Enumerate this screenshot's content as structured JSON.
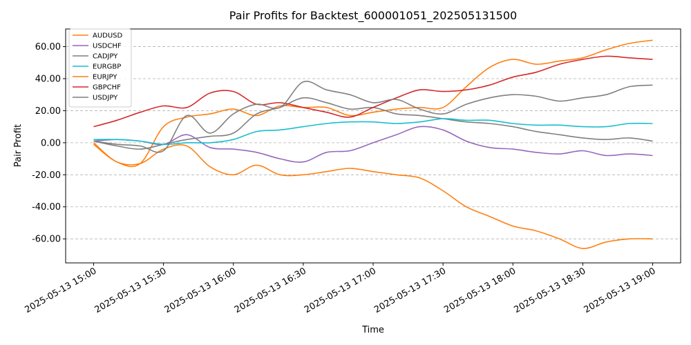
{
  "chart_data": {
    "type": "line",
    "title": "Pair Profits for Backtest_600001051_202505131500",
    "xlabel": "Time",
    "ylabel": "Pair Profit",
    "x_ticks": [
      "2025-05-13 15:00",
      "2025-05-13 15:30",
      "2025-05-13 16:00",
      "2025-05-13 16:30",
      "2025-05-13 17:00",
      "2025-05-13 17:30",
      "2025-05-13 18:00",
      "2025-05-13 18:30",
      "2025-05-13 19:00"
    ],
    "x_tick_minutes": [
      0,
      30,
      60,
      90,
      120,
      150,
      180,
      210,
      240
    ],
    "xlim_minutes": [
      -12,
      252
    ],
    "y_ticks": [
      -60,
      -40,
      -20,
      0,
      20,
      40,
      60
    ],
    "y_tick_labels": [
      "-60.00",
      "-40.00",
      "-20.00",
      "0.00",
      "20.00",
      "40.00",
      "60.00"
    ],
    "ylim": [
      -75,
      71
    ],
    "grid": "y-dashed",
    "legend_position": "upper-left",
    "x_minutes": [
      0,
      10,
      20,
      30,
      40,
      50,
      60,
      70,
      80,
      90,
      100,
      110,
      120,
      130,
      140,
      150,
      160,
      170,
      180,
      190,
      200,
      210,
      220,
      230,
      240
    ],
    "series": [
      {
        "name": "AUDUSD",
        "color": "#ff7f0e",
        "values": [
          0,
          -12,
          -13,
          10,
          16,
          18,
          21,
          17,
          23,
          22,
          22,
          17,
          19,
          21,
          22,
          22,
          35,
          47,
          52,
          49,
          51,
          53,
          58,
          62,
          64
        ]
      },
      {
        "name": "USDCHF",
        "color": "#9467bd",
        "values": [
          1,
          2,
          1,
          -1,
          5,
          -3,
          -4,
          -6,
          -10,
          -12,
          -6,
          -5,
          0,
          5,
          10,
          8,
          1,
          -3,
          -4,
          -6,
          -7,
          -5,
          -8,
          -7,
          -8
        ]
      },
      {
        "name": "CADJPY",
        "color": "#7f7f7f",
        "values": [
          1,
          -2,
          -4,
          -1,
          2,
          4,
          6,
          18,
          22,
          28,
          25,
          21,
          22,
          18,
          17,
          15,
          13,
          12,
          10,
          7,
          5,
          3,
          2,
          3,
          1
        ]
      },
      {
        "name": "EURGBP",
        "color": "#17becf",
        "values": [
          2,
          2,
          1,
          -1,
          0,
          0,
          2,
          7,
          8,
          10,
          12,
          13,
          13,
          12,
          13,
          15,
          14,
          14,
          12,
          11,
          11,
          10,
          10,
          12,
          12
        ]
      },
      {
        "name": "EURJPY",
        "color": "#ff7f0e",
        "values": [
          -1,
          -12,
          -13,
          -4,
          -2,
          -15,
          -20,
          -14,
          -20,
          -20,
          -18,
          -16,
          -18,
          -20,
          -22,
          -30,
          -40,
          -46,
          -52,
          -55,
          -60,
          -66,
          -62,
          -60,
          -60
        ]
      },
      {
        "name": "GBPCHF",
        "color": "#d62728",
        "values": [
          10,
          14,
          19,
          23,
          22,
          31,
          32,
          24,
          25,
          22,
          19,
          16,
          22,
          28,
          33,
          32,
          33,
          36,
          41,
          44,
          49,
          52,
          54,
          53,
          52
        ]
      },
      {
        "name": "USDJPY",
        "color": "#7f7f7f",
        "values": [
          1,
          -1,
          -2,
          -5,
          17,
          6,
          18,
          24,
          22,
          38,
          33,
          30,
          25,
          27,
          21,
          18,
          24,
          28,
          30,
          29,
          26,
          28,
          30,
          35,
          36
        ]
      }
    ]
  }
}
